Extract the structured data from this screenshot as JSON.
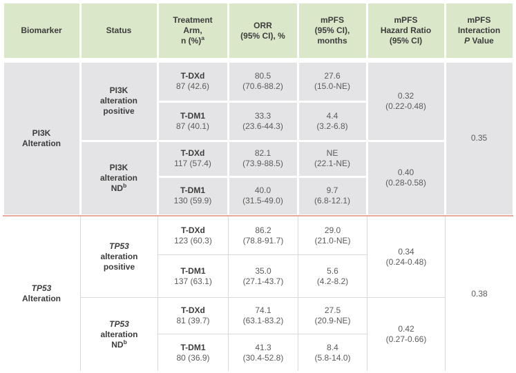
{
  "colors": {
    "header_bg": "#dbe7c9",
    "section1_bg": "#e4e4e6",
    "section2_bg": "#ffffff",
    "section_divider": "#e8a89e",
    "grid_line": "#d9d9d9",
    "text_dark": "#3c3c3c",
    "text_gray": "#5b5b5b"
  },
  "headers": {
    "biomarker": "Biomarker",
    "status": "Status",
    "arm_l1": "Treatment",
    "arm_l2": "Arm,",
    "arm_l3": "n (%)",
    "arm_sup": "a",
    "orr_l1": "ORR",
    "orr_l2": "(95% CI), %",
    "mpfs_l1": "mPFS",
    "mpfs_l2": "(95% CI),",
    "mpfs_l3": "months",
    "hr_l1": "mPFS",
    "hr_l2": "Hazard Ratio",
    "hr_l3": "(95% CI)",
    "int_l1": "mPFS",
    "int_l2": "Interaction",
    "int_p": "P",
    "int_value": " Value"
  },
  "sections": [
    {
      "biomarker_l1": "PI3K",
      "biomarker_l2": "Alteration",
      "interaction_p": "0.35",
      "groups": [
        {
          "status_l1": "PI3K",
          "status_l2": "alteration",
          "status_l3": "positive",
          "status_sup": "",
          "hr_l1": "0.32",
          "hr_l2": "(0.22-0.48)",
          "arms": [
            {
              "arm": "T-DXd",
              "n": "87 (42.6)",
              "orr_l1": "80.5",
              "orr_l2": "(70.6-88.2)",
              "pfs_l1": "27.6",
              "pfs_l2": "(15.0-NE)"
            },
            {
              "arm": "T-DM1",
              "n": "87 (40.1)",
              "orr_l1": "33.3",
              "orr_l2": "(23.6-44.3)",
              "pfs_l1": "4.4",
              "pfs_l2": "(3.2-6.8)"
            }
          ]
        },
        {
          "status_l1": "PI3K",
          "status_l2": "alteration",
          "status_l3": "ND",
          "status_sup": "b",
          "hr_l1": "0.40",
          "hr_l2": "(0.28-0.58)",
          "arms": [
            {
              "arm": "T-DXd",
              "n": "117 (57.4)",
              "orr_l1": "82.1",
              "orr_l2": "(73.9-88.5)",
              "pfs_l1": "NE",
              "pfs_l2": "(22.1-NE)"
            },
            {
              "arm": "T-DM1",
              "n": "130 (59.9)",
              "orr_l1": "40.0",
              "orr_l2": "(31.5-49.0)",
              "pfs_l1": "9.7",
              "pfs_l2": "(6.8-12.1)"
            }
          ]
        }
      ]
    },
    {
      "biomarker_l1": "TP53",
      "biomarker_l2": "Alteration",
      "interaction_p": "0.38",
      "groups": [
        {
          "status_l1": "TP53",
          "status_l2": "alteration",
          "status_l3": "positive",
          "status_sup": "",
          "hr_l1": "0.34",
          "hr_l2": "(0.24-0.48)",
          "arms": [
            {
              "arm": "T-DXd",
              "n": "123 (60.3)",
              "orr_l1": "86.2",
              "orr_l2": "(78.8-91.7)",
              "pfs_l1": "29.0",
              "pfs_l2": "(21.0-NE)"
            },
            {
              "arm": "T-DM1",
              "n": "137 (63.1)",
              "orr_l1": "35.0",
              "orr_l2": "(27.1-43.7)",
              "pfs_l1": "5.6",
              "pfs_l2": "(4.2-8.2)"
            }
          ]
        },
        {
          "status_l1": "TP53",
          "status_l2": "alteration",
          "status_l3": "ND",
          "status_sup": "b",
          "hr_l1": "0.42",
          "hr_l2": "(0.27-0.66)",
          "arms": [
            {
              "arm": "T-DXd",
              "n": "81 (39.7)",
              "orr_l1": "74.1",
              "orr_l2": "(63.1-83.2)",
              "pfs_l1": "27.5",
              "pfs_l2": "(20.9-NE)"
            },
            {
              "arm": "T-DM1",
              "n": "80 (36.9)",
              "orr_l1": "41.3",
              "orr_l2": "(30.4-52.8)",
              "pfs_l1": "8.4",
              "pfs_l2": "(5.8-14.0)"
            }
          ]
        }
      ]
    }
  ]
}
